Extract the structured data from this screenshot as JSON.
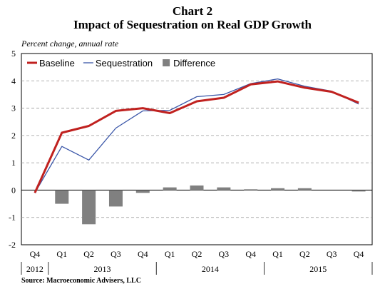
{
  "chart_data": {
    "type": "line",
    "title": "Chart 2",
    "subtitle": "Impact of Sequestration on Real GDP Growth",
    "ylabel": "Percent change, annual rate",
    "source": "Source: Macroeconomic Advisers, LLC",
    "ylim": [
      -2,
      5
    ],
    "yticks": [
      -2,
      -1,
      0,
      1,
      2,
      3,
      4,
      5
    ],
    "grid": "horizontal dashed",
    "legend_position": "top-left",
    "categories": [
      "Q4",
      "Q1",
      "Q2",
      "Q3",
      "Q4",
      "Q1",
      "Q2",
      "Q3",
      "Q4",
      "Q1",
      "Q2",
      "Q3",
      "Q4"
    ],
    "years": [
      {
        "label": "2012",
        "start": 0,
        "end": 0
      },
      {
        "label": "2013",
        "start": 1,
        "end": 4
      },
      {
        "label": "2014",
        "start": 5,
        "end": 8
      },
      {
        "label": "2015",
        "start": 9,
        "end": 12
      }
    ],
    "series": [
      {
        "name": "Baseline",
        "type": "line",
        "color": "#c0211f",
        "values": [
          -0.1,
          2.1,
          2.35,
          2.9,
          3.0,
          2.82,
          3.25,
          3.38,
          3.87,
          3.98,
          3.75,
          3.6,
          3.2
        ]
      },
      {
        "name": "Sequestration",
        "type": "line",
        "color": "#3a56a8",
        "values": [
          -0.1,
          1.6,
          1.1,
          2.27,
          2.9,
          2.92,
          3.42,
          3.5,
          3.9,
          4.07,
          3.8,
          3.62,
          3.15
        ]
      },
      {
        "name": "Difference",
        "type": "bar",
        "color": "#808080",
        "values": [
          0,
          -0.5,
          -1.25,
          -0.6,
          -0.1,
          0.1,
          0.17,
          0.1,
          0.03,
          0.07,
          0.07,
          0,
          -0.05
        ]
      }
    ]
  }
}
